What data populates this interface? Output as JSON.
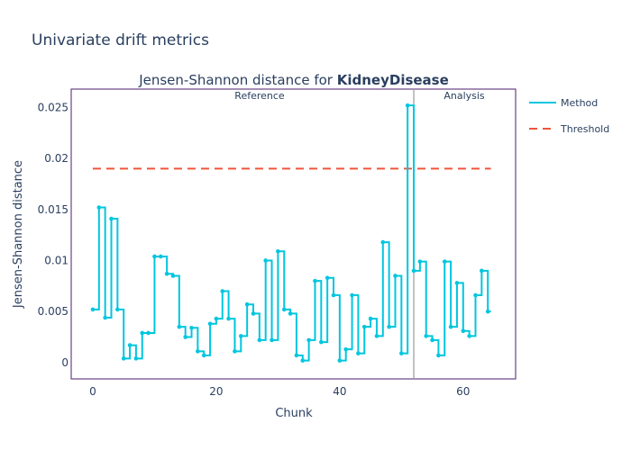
{
  "page_title": "Univariate drift metrics",
  "chart_data": {
    "type": "line",
    "title_prefix": "Jensen-Shannon distance for ",
    "title_bold": "KidneyDisease",
    "xlabel": "Chunk",
    "ylabel": "Jensen-Shannon distance",
    "xlim": [
      -3.5,
      68.5
    ],
    "ylim": [
      -0.0016,
      0.0268
    ],
    "x_ticks": [
      0,
      20,
      40,
      60
    ],
    "y_ticks": [
      0,
      0.005,
      0.01,
      0.015,
      0.02,
      0.025
    ],
    "y_tick_labels": [
      "0",
      "0.005",
      "0.01",
      "0.015",
      "0.02",
      "0.025"
    ],
    "step": "hv",
    "reference_label": "Reference",
    "analysis_label": "Analysis",
    "period_split_x": 52,
    "threshold": {
      "name": "Threshold",
      "value": 0.019,
      "x_range": [
        0,
        64.5
      ],
      "color": "#ef553b"
    },
    "series": [
      {
        "name": "Method",
        "color": "#00c6df",
        "x": [
          0,
          1,
          2,
          3,
          4,
          5,
          6,
          7,
          8,
          9,
          10,
          11,
          12,
          13,
          14,
          15,
          16,
          17,
          18,
          19,
          20,
          21,
          22,
          23,
          24,
          25,
          26,
          27,
          28,
          29,
          30,
          31,
          32,
          33,
          34,
          35,
          36,
          37,
          38,
          39,
          40,
          41,
          42,
          43,
          44,
          45,
          46,
          47,
          48,
          49,
          50,
          51,
          52,
          53,
          54,
          55,
          56,
          57,
          58,
          59,
          60,
          61,
          62,
          63,
          64
        ],
        "values": [
          0.0052,
          0.0152,
          0.0044,
          0.0141,
          0.0052,
          0.0004,
          0.0017,
          0.0004,
          0.0029,
          0.0029,
          0.0104,
          0.0104,
          0.0087,
          0.0085,
          0.0035,
          0.0025,
          0.0034,
          0.0011,
          0.0007,
          0.0038,
          0.0043,
          0.007,
          0.0043,
          0.0011,
          0.0026,
          0.0057,
          0.0048,
          0.0022,
          0.01,
          0.0022,
          0.0109,
          0.0052,
          0.0048,
          0.0007,
          0.0002,
          0.0022,
          0.008,
          0.002,
          0.0083,
          0.0066,
          0.0002,
          0.0013,
          0.0066,
          0.0009,
          0.0035,
          0.0043,
          0.0026,
          0.0118,
          0.0035,
          0.0085,
          0.0009,
          0.0252,
          0.009,
          0.0099,
          0.0026,
          0.0022,
          0.0007,
          0.0099,
          0.0035,
          0.0078,
          0.0031,
          0.0026,
          0.0066,
          0.009,
          0.005
        ]
      }
    ],
    "legend_position": "right"
  }
}
